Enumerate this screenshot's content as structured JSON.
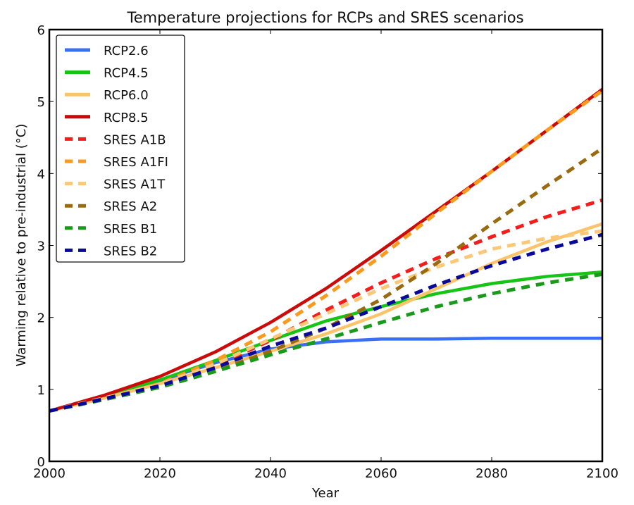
{
  "chart_data": {
    "type": "line",
    "title": "Temperature projections for RCPs and SRES scenarios",
    "xlabel": "Year",
    "ylabel": "Warming relative to pre-industrial (°C)",
    "xlim": [
      2000,
      2100
    ],
    "ylim": [
      0,
      6
    ],
    "xticks": [
      2000,
      2020,
      2040,
      2060,
      2080,
      2100
    ],
    "yticks": [
      0,
      1,
      2,
      3,
      4,
      5,
      6
    ],
    "grid": false,
    "legend_position": "top-left",
    "x": [
      2000,
      2010,
      2020,
      2030,
      2040,
      2050,
      2060,
      2070,
      2080,
      2090,
      2100
    ],
    "series": [
      {
        "name": "RCP2.6",
        "color": "#3a6ef5",
        "style": "solid",
        "values": [
          0.7,
          0.9,
          1.12,
          1.37,
          1.56,
          1.66,
          1.7,
          1.7,
          1.71,
          1.71,
          1.71
        ]
      },
      {
        "name": "RCP4.5",
        "color": "#16c416",
        "style": "solid",
        "values": [
          0.7,
          0.9,
          1.13,
          1.4,
          1.68,
          1.95,
          2.15,
          2.33,
          2.47,
          2.57,
          2.63
        ]
      },
      {
        "name": "RCP6.0",
        "color": "#fbc46a",
        "style": "solid",
        "values": [
          0.7,
          0.88,
          1.08,
          1.3,
          1.53,
          1.77,
          2.05,
          2.4,
          2.75,
          3.05,
          3.3
        ]
      },
      {
        "name": "RCP8.5",
        "color": "#cc0a0a",
        "style": "solid",
        "values": [
          0.7,
          0.92,
          1.18,
          1.52,
          1.93,
          2.4,
          2.93,
          3.48,
          4.03,
          4.6,
          5.17
        ]
      },
      {
        "name": "SRES A1B",
        "color": "#f51c1c",
        "style": "dashed",
        "values": [
          0.7,
          0.88,
          1.07,
          1.33,
          1.68,
          2.1,
          2.48,
          2.82,
          3.12,
          3.4,
          3.63
        ]
      },
      {
        "name": "SRES A1FI",
        "color": "#fb9a1c",
        "style": "dashed",
        "values": [
          0.7,
          0.88,
          1.08,
          1.4,
          1.8,
          2.3,
          2.85,
          3.45,
          4.03,
          4.6,
          5.15
        ]
      },
      {
        "name": "SRES A1T",
        "color": "#fcc878",
        "style": "dashed",
        "values": [
          0.7,
          0.88,
          1.07,
          1.35,
          1.7,
          2.05,
          2.4,
          2.7,
          2.95,
          3.1,
          3.2
        ]
      },
      {
        "name": "SRES A2",
        "color": "#9a6a10",
        "style": "dashed",
        "values": [
          0.7,
          0.86,
          1.03,
          1.25,
          1.53,
          1.85,
          2.25,
          2.75,
          3.3,
          3.83,
          4.35
        ]
      },
      {
        "name": "SRES B1",
        "color": "#1a9a1a",
        "style": "dashed",
        "values": [
          0.7,
          0.86,
          1.03,
          1.25,
          1.48,
          1.7,
          1.93,
          2.15,
          2.33,
          2.48,
          2.6
        ]
      },
      {
        "name": "SRES B2",
        "color": "#0a0a9a",
        "style": "dashed",
        "values": [
          0.7,
          0.87,
          1.05,
          1.3,
          1.6,
          1.85,
          2.15,
          2.45,
          2.72,
          2.95,
          3.15
        ]
      }
    ]
  }
}
